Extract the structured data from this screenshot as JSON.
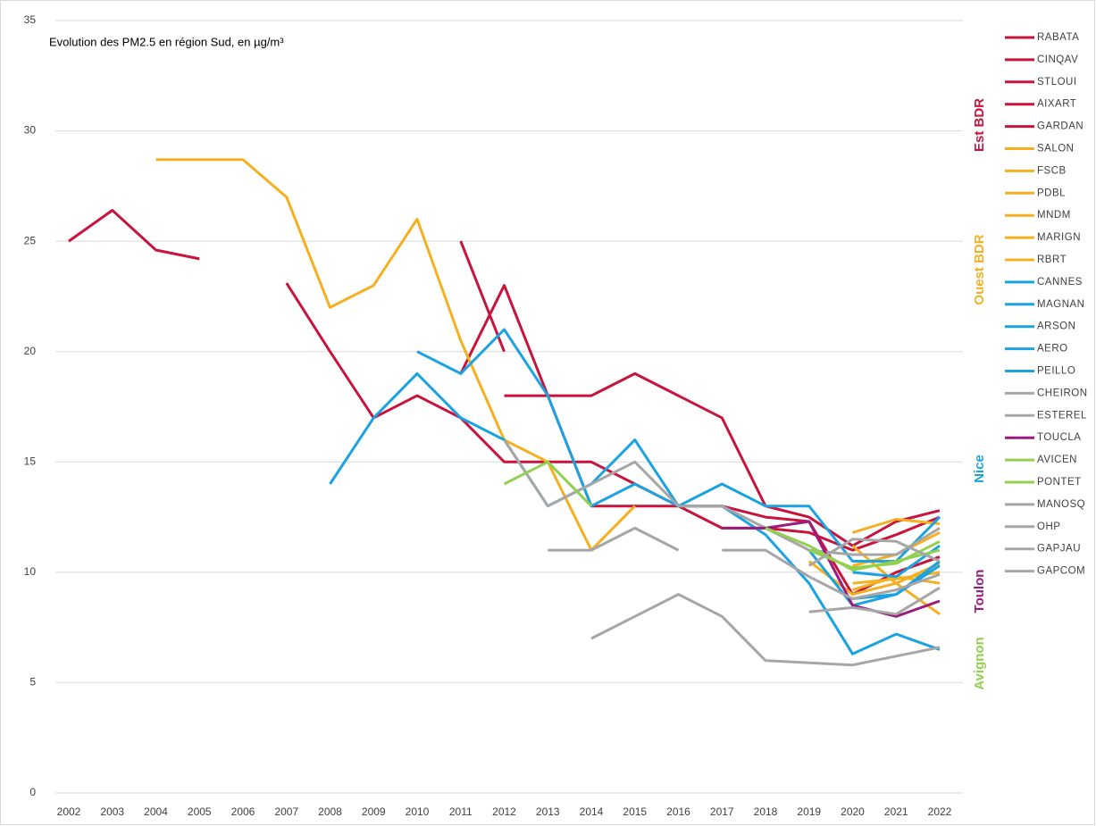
{
  "chart_data": {
    "type": "line",
    "title": "Evolution des PM2.5 en région Sud, en µg/m³",
    "categories": [
      "2002",
      "2003",
      "2004",
      "2005",
      "2006",
      "2007",
      "2008",
      "2009",
      "2010",
      "2011",
      "2012",
      "2013",
      "2014",
      "2015",
      "2016",
      "2017",
      "2018",
      "2019",
      "2020",
      "2021",
      "2022"
    ],
    "ylim": [
      0,
      35
    ],
    "yticks": [
      0,
      5,
      10,
      15,
      20,
      25,
      30,
      35
    ],
    "grid": true,
    "legend": "right",
    "annotations": [
      {
        "text": "Est BDR",
        "color": "#c8143c"
      },
      {
        "text": "Ouest BDR",
        "color": "#f5b021"
      },
      {
        "text": "Nice",
        "color": "#1aa3e0"
      },
      {
        "text": "Toulon",
        "color": "#9b1b7e"
      },
      {
        "text": "Avignon",
        "color": "#92d050"
      }
    ],
    "series": [
      {
        "name": "RABATA",
        "color": "#c8143c",
        "values": [
          25,
          26.4,
          24.6,
          24.2,
          null,
          null,
          null,
          null,
          null,
          null,
          null,
          null,
          null,
          null,
          null,
          null,
          null,
          null,
          null,
          null,
          null
        ]
      },
      {
        "name": "CINQAV",
        "color": "#c8143c",
        "values": [
          null,
          null,
          null,
          null,
          null,
          23.1,
          20,
          17,
          18,
          17,
          15,
          15,
          15,
          14,
          13,
          12,
          12,
          11.8,
          11,
          11.7,
          12.5
        ]
      },
      {
        "name": "STLOUI",
        "color": "#c8143c",
        "values": [
          null,
          null,
          null,
          null,
          null,
          null,
          null,
          null,
          null,
          19,
          23,
          18,
          13,
          13,
          13,
          13,
          12.5,
          12.3,
          9,
          10,
          10.7
        ]
      },
      {
        "name": "AIXART",
        "color": "#c8143c",
        "values": [
          null,
          null,
          null,
          null,
          null,
          null,
          null,
          null,
          null,
          25,
          20,
          null,
          null,
          null,
          null,
          null,
          null,
          null,
          null,
          null,
          null
        ]
      },
      {
        "name": "GARDAN",
        "color": "#c8143c",
        "values": [
          null,
          null,
          null,
          null,
          null,
          null,
          null,
          null,
          null,
          null,
          18,
          18,
          18,
          19,
          18,
          17,
          13,
          12.5,
          11.2,
          12.3,
          12.8
        ]
      },
      {
        "name": "SALON",
        "color": "#f5b021",
        "values": [
          null,
          null,
          28.7,
          28.7,
          28.7,
          27,
          22,
          23,
          26,
          20.5,
          16,
          15,
          11,
          13,
          null,
          null,
          null,
          null,
          11.8,
          12.4,
          12.2
        ]
      },
      {
        "name": "FSCB",
        "color": "#f5b021",
        "values": [
          null,
          null,
          null,
          null,
          null,
          null,
          null,
          null,
          null,
          null,
          null,
          null,
          null,
          null,
          null,
          null,
          null,
          null,
          9.5,
          9.7,
          10
        ]
      },
      {
        "name": "PDBL",
        "color": "#f5b021",
        "values": [
          null,
          null,
          null,
          null,
          null,
          null,
          null,
          null,
          null,
          null,
          null,
          null,
          null,
          null,
          null,
          null,
          null,
          null,
          11.2,
          9.5,
          8.1
        ]
      },
      {
        "name": "MNDM",
        "color": "#f5b021",
        "values": [
          null,
          null,
          null,
          null,
          null,
          null,
          null,
          null,
          null,
          null,
          null,
          null,
          null,
          null,
          null,
          null,
          null,
          null,
          9.2,
          9.8,
          9.5
        ]
      },
      {
        "name": "MARIGN",
        "color": "#f5b021",
        "values": [
          null,
          null,
          null,
          null,
          null,
          null,
          null,
          null,
          null,
          null,
          null,
          null,
          null,
          null,
          null,
          null,
          null,
          null,
          10.3,
          10.8,
          11.8
        ]
      },
      {
        "name": "RBRT",
        "color": "#f5b021",
        "values": [
          null,
          null,
          null,
          null,
          null,
          null,
          null,
          null,
          null,
          null,
          null,
          null,
          null,
          null,
          null,
          null,
          null,
          10.5,
          9,
          9.5,
          10.4
        ]
      },
      {
        "name": "CANNES",
        "color": "#1aa3e0",
        "values": [
          null,
          null,
          null,
          null,
          null,
          null,
          14,
          17,
          19,
          17,
          16,
          13,
          14,
          16,
          13,
          14,
          13,
          13,
          10.5,
          10.5,
          12.5
        ]
      },
      {
        "name": "MAGNAN",
        "color": "#1aa3e0",
        "values": [
          null,
          null,
          null,
          null,
          null,
          null,
          null,
          null,
          20,
          19,
          21,
          18,
          13,
          14,
          13,
          13,
          11.7,
          9.5,
          6.3,
          7.2,
          6.5
        ]
      },
      {
        "name": "ARSON",
        "color": "#1aa3e0",
        "values": [
          null,
          null,
          null,
          null,
          null,
          null,
          null,
          null,
          null,
          null,
          null,
          null,
          null,
          null,
          null,
          null,
          null,
          11,
          8.5,
          9,
          10.3
        ]
      },
      {
        "name": "AERO",
        "color": "#1aa3e0",
        "values": [
          null,
          null,
          null,
          null,
          null,
          null,
          null,
          null,
          null,
          null,
          null,
          null,
          null,
          null,
          null,
          null,
          null,
          null,
          10,
          9.8,
          11.2
        ]
      },
      {
        "name": "PEILLO",
        "color": "#1aa3e0",
        "values": [
          null,
          null,
          null,
          null,
          null,
          null,
          null,
          null,
          null,
          null,
          null,
          null,
          null,
          null,
          null,
          null,
          null,
          null,
          8.8,
          9,
          10.5
        ]
      },
      {
        "name": "CHEIRON",
        "color": "#a6a6a6",
        "values": [
          null,
          null,
          null,
          null,
          null,
          null,
          null,
          null,
          null,
          null,
          16,
          13,
          14,
          15,
          13,
          13,
          12,
          11,
          10.8,
          10.8,
          12
        ]
      },
      {
        "name": "ESTEREL",
        "color": "#a6a6a6",
        "values": [
          null,
          null,
          null,
          null,
          null,
          null,
          null,
          null,
          null,
          null,
          null,
          11,
          11,
          12,
          11,
          null,
          null,
          null,
          null,
          null,
          null
        ]
      },
      {
        "name": "TOUCLA",
        "color": "#9b1b7e",
        "values": [
          null,
          null,
          null,
          null,
          null,
          null,
          null,
          null,
          null,
          null,
          null,
          null,
          null,
          null,
          null,
          12,
          12,
          12.3,
          8.5,
          8,
          8.7
        ]
      },
      {
        "name": "AVICEN",
        "color": "#92d050",
        "values": [
          null,
          null,
          null,
          null,
          null,
          null,
          null,
          null,
          null,
          null,
          14,
          15,
          13,
          null,
          null,
          null,
          null,
          11,
          10.2,
          10.4,
          11.4
        ]
      },
      {
        "name": "PONTET",
        "color": "#92d050",
        "values": [
          null,
          null,
          null,
          null,
          null,
          null,
          null,
          null,
          null,
          null,
          null,
          null,
          null,
          null,
          null,
          null,
          12,
          11.2,
          10.1,
          10.5,
          11
        ]
      },
      {
        "name": "MANOSQ",
        "color": "#a6a6a6",
        "values": [
          null,
          null,
          null,
          null,
          null,
          null,
          null,
          null,
          null,
          null,
          null,
          null,
          7,
          8,
          9,
          8,
          6,
          5.9,
          5.8,
          6.2,
          6.6
        ]
      },
      {
        "name": "OHP",
        "color": "#a6a6a6",
        "values": [
          null,
          null,
          null,
          null,
          null,
          null,
          null,
          null,
          null,
          null,
          null,
          null,
          null,
          null,
          null,
          null,
          null,
          8.2,
          8.4,
          8.1,
          9.3
        ]
      },
      {
        "name": "GAPJAU",
        "color": "#a6a6a6",
        "values": [
          null,
          null,
          null,
          null,
          null,
          null,
          null,
          null,
          null,
          null,
          null,
          null,
          null,
          null,
          null,
          11,
          11,
          9.8,
          8.8,
          9.2,
          9.9
        ]
      },
      {
        "name": "GAPCOM",
        "color": "#a6a6a6",
        "values": [
          null,
          null,
          null,
          null,
          null,
          null,
          null,
          null,
          null,
          null,
          null,
          null,
          null,
          null,
          null,
          null,
          null,
          10.3,
          11.5,
          11.4,
          10.5
        ]
      }
    ]
  }
}
